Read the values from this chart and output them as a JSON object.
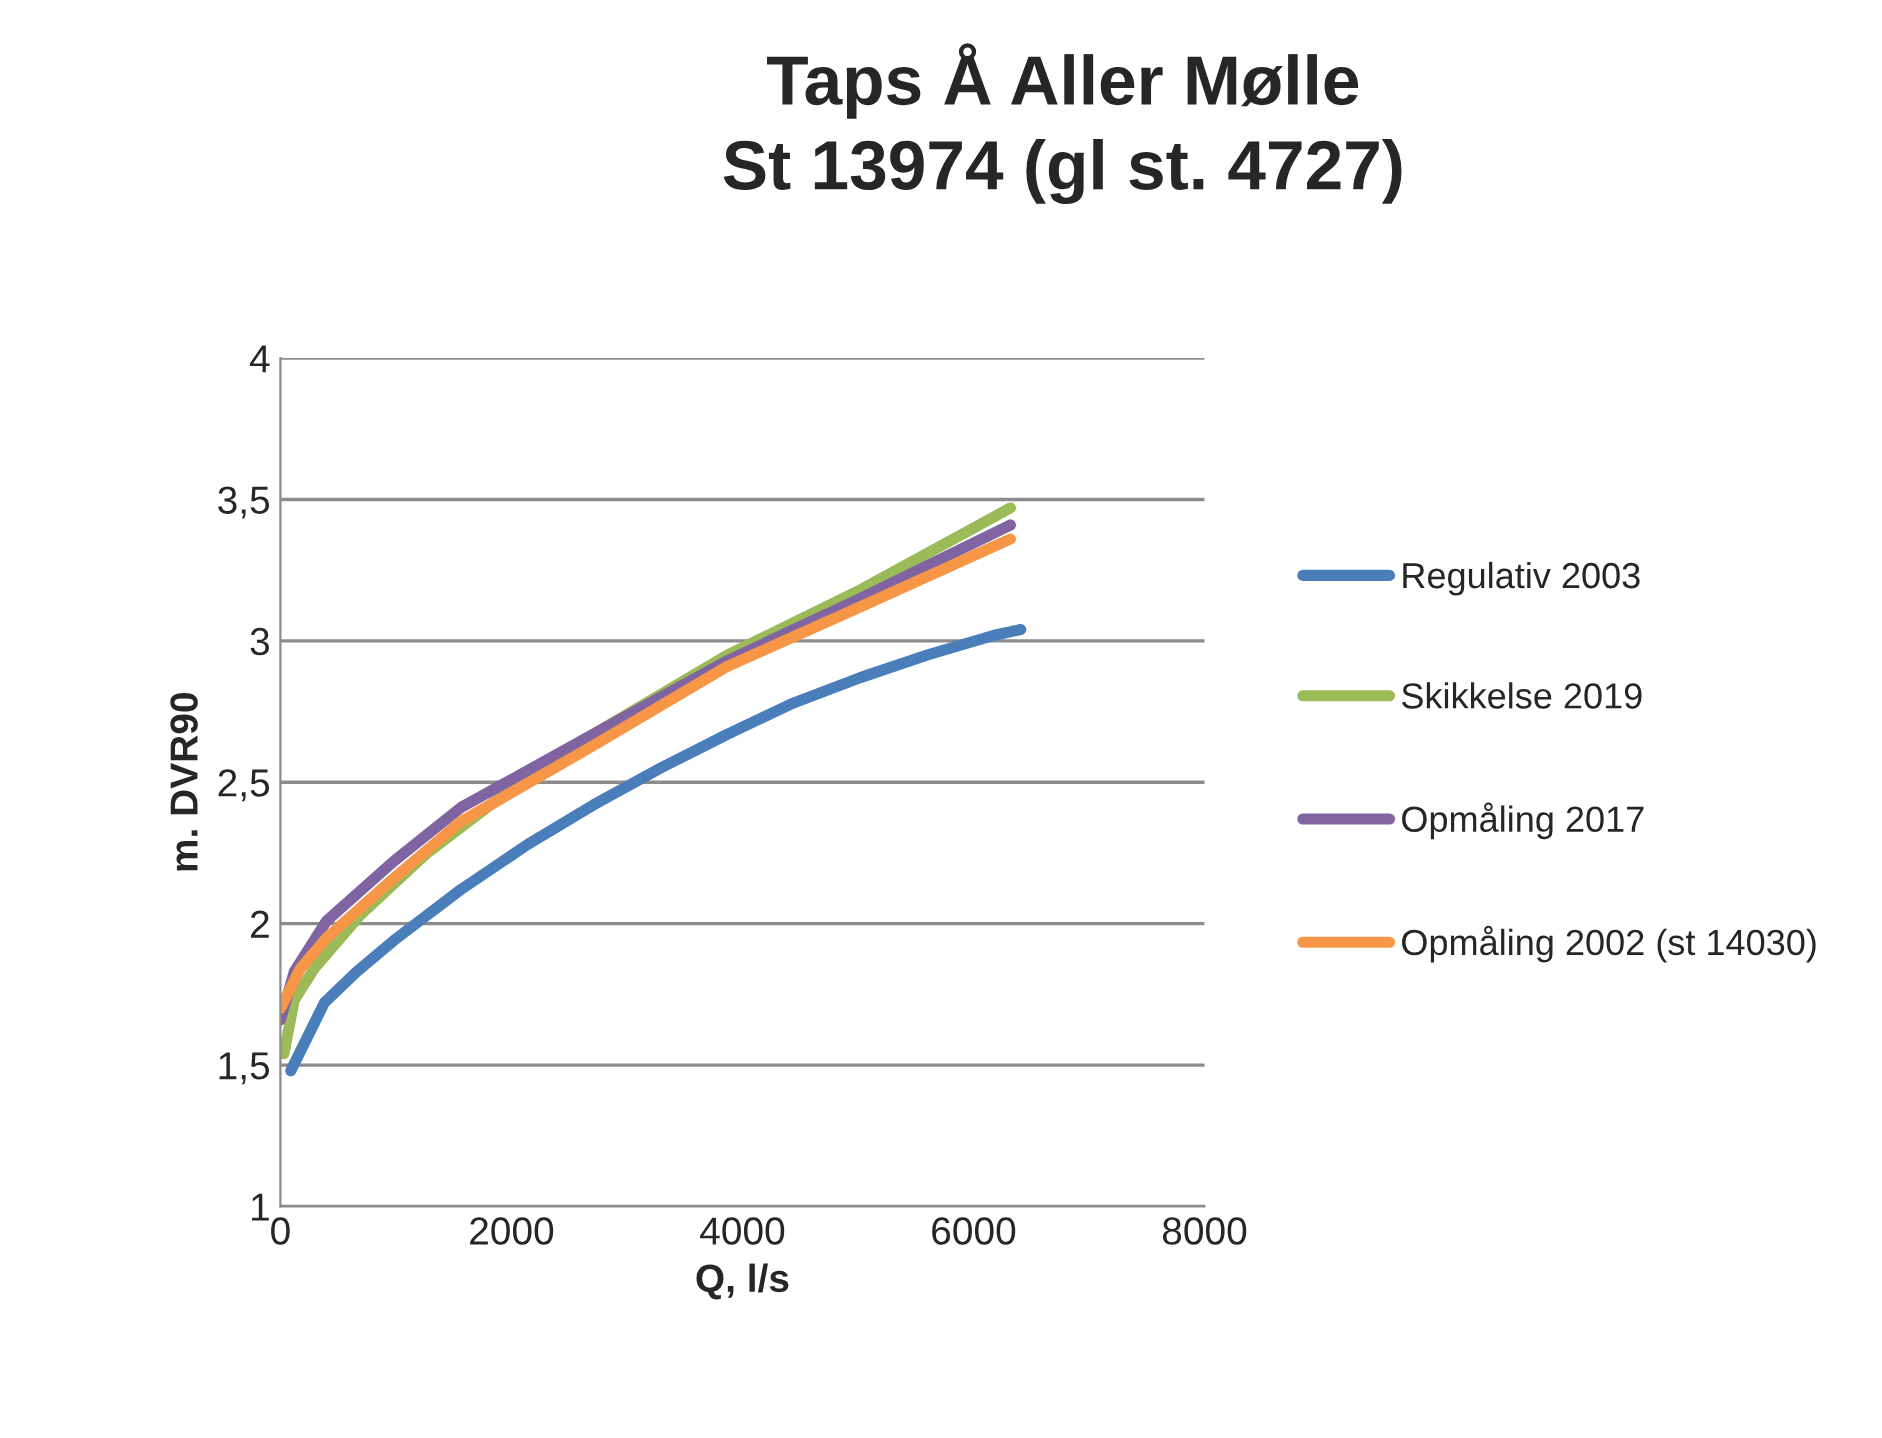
{
  "chart_data": {
    "type": "line",
    "title": "Taps Å Aller Mølle\nSt 13974 (gl st. 4727)",
    "xlabel": "Q, l/s",
    "ylabel": "m. DVR90",
    "xlim": [
      0,
      8000
    ],
    "xticks": [
      0,
      2000,
      4000,
      6000,
      8000
    ],
    "ylim": [
      1,
      4
    ],
    "yticks": [
      1,
      {
        "value": 1.5,
        "label": "1,5"
      },
      2,
      {
        "value": 2.5,
        "label": "2,5"
      },
      3,
      {
        "value": 3.5,
        "label": "3,5"
      },
      4
    ],
    "grid": "y",
    "legend": "right",
    "marker": "none",
    "line_style": "solid",
    "series": [
      {
        "name": "Regulativ 2003",
        "color": "#4a7ebb",
        "x": [
          90,
          380,
          660,
          980,
          1270,
          1560,
          2140,
          2710,
          3290,
          3870,
          4440,
          5020,
          5600,
          6180,
          6410
        ],
        "values": [
          1.48,
          1.72,
          1.83,
          1.94,
          2.03,
          2.12,
          2.28,
          2.42,
          2.55,
          2.67,
          2.78,
          2.87,
          2.95,
          3.02,
          3.04
        ]
      },
      {
        "name": "Skikkelse 2019",
        "color": "#9bbb59",
        "x": [
          30,
          120,
          290,
          690,
          1270,
          1850,
          2710,
          3870,
          5020,
          6320
        ],
        "values": [
          1.54,
          1.73,
          1.84,
          2.03,
          2.25,
          2.43,
          2.67,
          2.95,
          3.18,
          3.47
        ]
      },
      {
        "name": "Opmåling 2017",
        "color": "#8064a2",
        "x": [
          0,
          120,
          400,
          980,
          1560,
          2710,
          3870,
          5020,
          6320
        ],
        "values": [
          1.66,
          1.83,
          2.01,
          2.22,
          2.41,
          2.67,
          2.93,
          3.15,
          3.41
        ]
      },
      {
        "name": "Opmåling 2002 (st 14030)",
        "color": "#f79646",
        "x": [
          0,
          170,
          400,
          980,
          1560,
          2710,
          3870,
          5020,
          6320
        ],
        "values": [
          1.7,
          1.84,
          1.95,
          2.16,
          2.36,
          2.63,
          2.91,
          3.12,
          3.36
        ]
      }
    ]
  }
}
